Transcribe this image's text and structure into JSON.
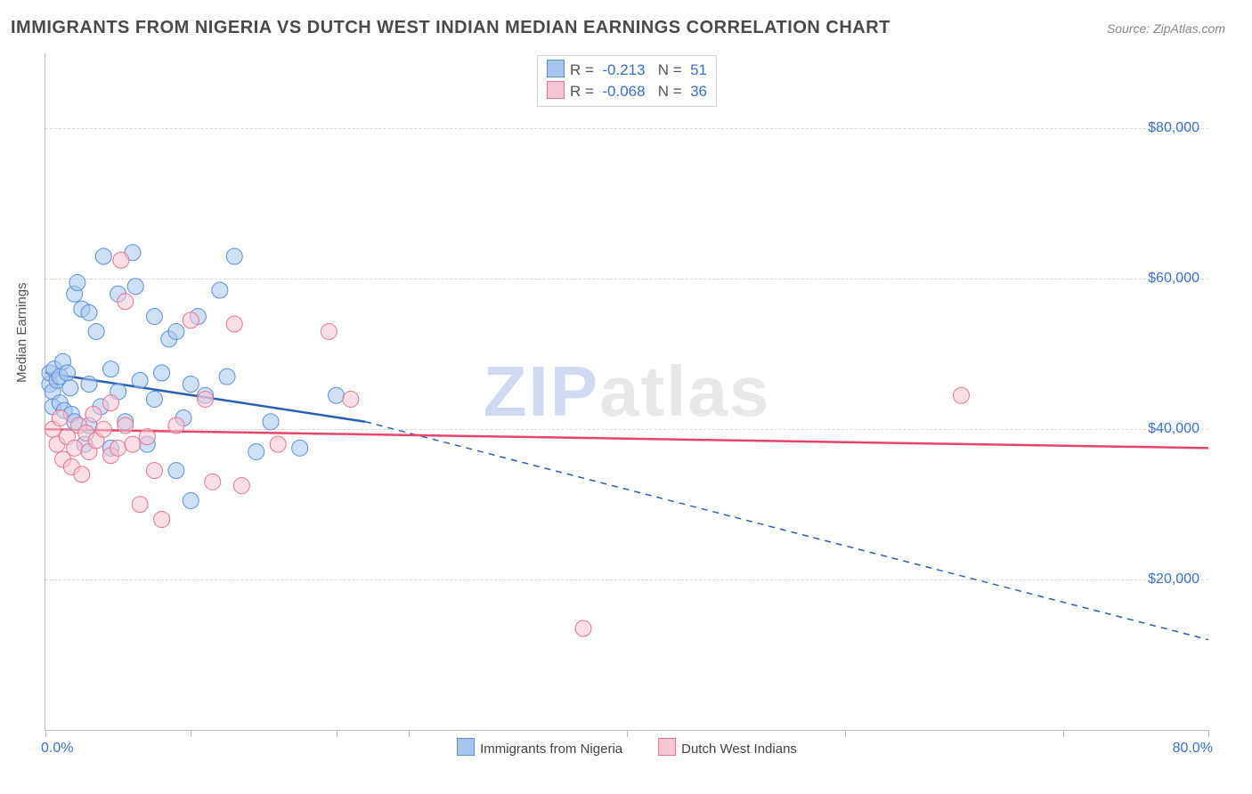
{
  "title": "IMMIGRANTS FROM NIGERIA VS DUTCH WEST INDIAN MEDIAN EARNINGS CORRELATION CHART",
  "source": "Source: ZipAtlas.com",
  "ylabel": "Median Earnings",
  "watermark_a": "ZIP",
  "watermark_b": "atlas",
  "chart": {
    "type": "scatter",
    "xlim": [
      0,
      80
    ],
    "ylim": [
      0,
      90000
    ],
    "x_tick_positions": [
      0,
      10,
      20,
      25,
      40,
      55,
      70,
      80
    ],
    "x_axis_min_label": "0.0%",
    "x_axis_max_label": "80.0%",
    "y_ticks": [
      20000,
      40000,
      60000,
      80000
    ],
    "y_tick_labels": [
      "$20,000",
      "$40,000",
      "$60,000",
      "$80,000"
    ],
    "grid_color": "#d8d8d8",
    "axis_color": "#bfbfbf",
    "background_color": "#ffffff",
    "ytick_label_color": "#3b6fd6",
    "xaxis_label_color": "#3b6fd6",
    "marker_radius": 9,
    "marker_opacity": 0.55,
    "line_width": 2.5,
    "series": [
      {
        "id": "nigeria",
        "label": "Immigrants from Nigeria",
        "fill": "#a7c4ee",
        "stroke": "#5b8fd6",
        "line_color": "#2c5fb3",
        "R": "-0.213",
        "N": "51",
        "trend_solid": {
          "x1": 0,
          "y1": 47500,
          "x2": 22,
          "y2": 41000
        },
        "trend_dashed": {
          "x1": 22,
          "y1": 41000,
          "x2": 80,
          "y2": 12000
        },
        "points": [
          [
            0.3,
            46000
          ],
          [
            0.3,
            47500
          ],
          [
            0.5,
            45000
          ],
          [
            0.6,
            48000
          ],
          [
            0.5,
            43000
          ],
          [
            0.8,
            46500
          ],
          [
            1.0,
            47000
          ],
          [
            1.0,
            43500
          ],
          [
            1.2,
            49000
          ],
          [
            1.3,
            42500
          ],
          [
            1.5,
            47500
          ],
          [
            1.7,
            45500
          ],
          [
            1.8,
            42000
          ],
          [
            2.0,
            58000
          ],
          [
            2.2,
            59500
          ],
          [
            2.0,
            41000
          ],
          [
            2.5,
            56000
          ],
          [
            2.7,
            38000
          ],
          [
            3.0,
            55500
          ],
          [
            3.0,
            46000
          ],
          [
            3.0,
            40500
          ],
          [
            3.5,
            53000
          ],
          [
            3.8,
            43000
          ],
          [
            4.0,
            63000
          ],
          [
            4.5,
            48000
          ],
          [
            4.5,
            37500
          ],
          [
            5.0,
            45000
          ],
          [
            5.0,
            58000
          ],
          [
            5.5,
            41000
          ],
          [
            6.0,
            63500
          ],
          [
            6.2,
            59000
          ],
          [
            6.5,
            46500
          ],
          [
            7.0,
            38000
          ],
          [
            7.5,
            55000
          ],
          [
            7.5,
            44000
          ],
          [
            8.0,
            47500
          ],
          [
            8.5,
            52000
          ],
          [
            9.0,
            53000
          ],
          [
            9.0,
            34500
          ],
          [
            9.5,
            41500
          ],
          [
            10.0,
            46000
          ],
          [
            10.0,
            30500
          ],
          [
            10.5,
            55000
          ],
          [
            11.0,
            44500
          ],
          [
            12.0,
            58500
          ],
          [
            12.5,
            47000
          ],
          [
            13.0,
            63000
          ],
          [
            14.5,
            37000
          ],
          [
            15.5,
            41000
          ],
          [
            17.5,
            37500
          ],
          [
            20.0,
            44500
          ]
        ]
      },
      {
        "id": "dutch",
        "label": "Dutch West Indians",
        "fill": "#f6c5d3",
        "stroke": "#e8738f",
        "line_color": "#e8456d",
        "R": "-0.068",
        "N": "36",
        "trend_solid": {
          "x1": 0,
          "y1": 40000,
          "x2": 80,
          "y2": 37500
        },
        "trend_dashed": null,
        "points": [
          [
            0.5,
            40000
          ],
          [
            0.8,
            38000
          ],
          [
            1.0,
            41500
          ],
          [
            1.2,
            36000
          ],
          [
            1.5,
            39000
          ],
          [
            1.8,
            35000
          ],
          [
            2.0,
            37500
          ],
          [
            2.3,
            40500
          ],
          [
            2.5,
            34000
          ],
          [
            2.8,
            39500
          ],
          [
            3.0,
            37000
          ],
          [
            3.3,
            42000
          ],
          [
            3.5,
            38500
          ],
          [
            4.0,
            40000
          ],
          [
            4.5,
            36500
          ],
          [
            4.5,
            43500
          ],
          [
            5.0,
            37500
          ],
          [
            5.2,
            62500
          ],
          [
            5.5,
            40500
          ],
          [
            5.5,
            57000
          ],
          [
            6.0,
            38000
          ],
          [
            6.5,
            30000
          ],
          [
            7.0,
            39000
          ],
          [
            7.5,
            34500
          ],
          [
            8.0,
            28000
          ],
          [
            9.0,
            40500
          ],
          [
            10.0,
            54500
          ],
          [
            11.0,
            44000
          ],
          [
            11.5,
            33000
          ],
          [
            13.0,
            54000
          ],
          [
            13.5,
            32500
          ],
          [
            16.0,
            38000
          ],
          [
            19.5,
            53000
          ],
          [
            21.0,
            44000
          ],
          [
            37.0,
            13500
          ],
          [
            63.0,
            44500
          ]
        ]
      }
    ]
  },
  "legend_bottom": [
    {
      "label": "Immigrants from Nigeria",
      "fill": "#a7c4ee",
      "stroke": "#5b8fd6"
    },
    {
      "label": "Dutch West Indians",
      "fill": "#f6c5d3",
      "stroke": "#e8738f"
    }
  ]
}
